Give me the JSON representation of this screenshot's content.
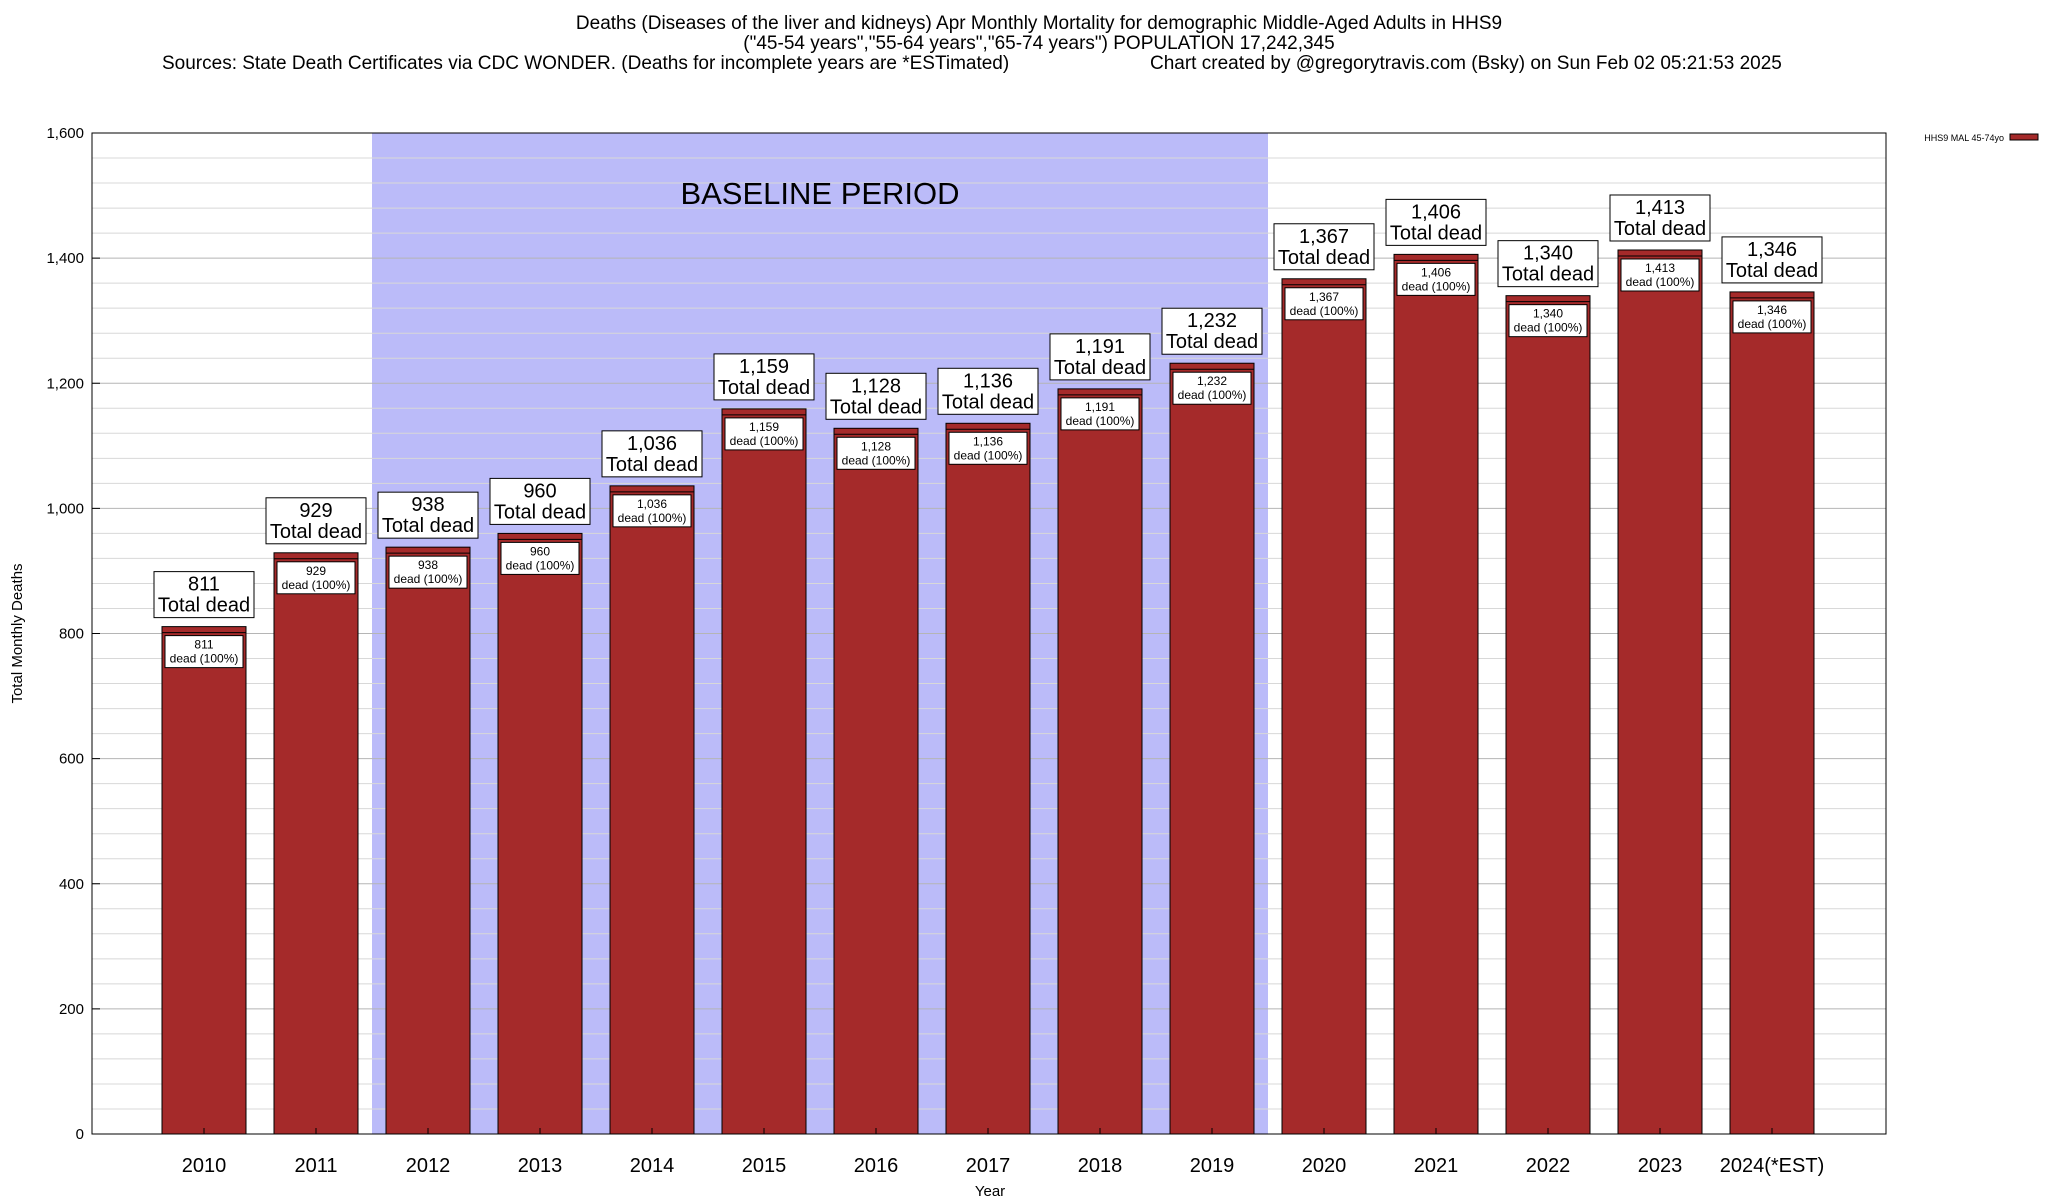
{
  "title": {
    "line1": "Deaths (Diseases of the liver and kidneys) Apr Monthly Mortality for demographic Middle-Aged Adults in HHS9",
    "line2": "(\"45-54 years\",\"55-64 years\",\"65-74 years\") POPULATION 17,242,345",
    "line3_left": "Sources: State Death Certificates via CDC WONDER. (Deaths for incomplete years are *ESTimated)",
    "line3_right": "Chart created by @gregorytravis.com (Bsky) on Sun Feb 02 05:21:53 2025"
  },
  "chart_data": {
    "type": "bar",
    "xlabel": "Year",
    "ylabel": "Total Monthly Deaths",
    "ylim": [
      0,
      1600
    ],
    "yticks": [
      0,
      200,
      400,
      600,
      800,
      1000,
      1200,
      1400,
      1600
    ],
    "ytick_labels": [
      "0",
      "200",
      "400",
      "600",
      "800",
      "1,000",
      "1,200",
      "1,400",
      "1,600"
    ],
    "categories": [
      "2010",
      "2011",
      "2012",
      "2013",
      "2014",
      "2015",
      "2016",
      "2017",
      "2018",
      "2019",
      "2020",
      "2021",
      "2022",
      "2023",
      "2024(*EST)"
    ],
    "series": [
      {
        "name": "HHS9 MAL 45-74yo",
        "values": [
          811,
          929,
          938,
          960,
          1036,
          1159,
          1128,
          1136,
          1191,
          1232,
          1367,
          1406,
          1340,
          1413,
          1346
        ],
        "color": "#a52a2a"
      }
    ],
    "value_labels": [
      "811",
      "929",
      "938",
      "960",
      "1,036",
      "1,159",
      "1,128",
      "1,136",
      "1,191",
      "1,232",
      "1,367",
      "1,406",
      "1,340",
      "1,413",
      "1,346"
    ],
    "total_label": "Total dead",
    "inner_label_suffix": "dead (100%)",
    "baseline": {
      "label": "BASELINE PERIOD",
      "start": "2012",
      "end": "2019",
      "color": "#bbbbf9"
    },
    "grid": true,
    "legend_position": "top-right"
  }
}
